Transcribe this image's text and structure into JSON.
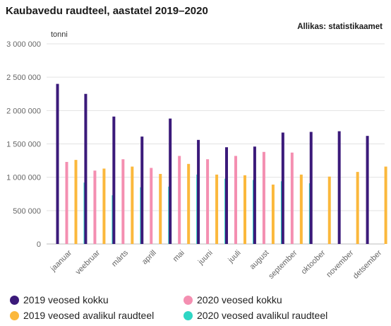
{
  "title": "Kaubavedu raudteel, aastatel 2019–2020",
  "source": "Allikas: statistikaamet",
  "colors": {
    "2019_total": "#3b1a7a",
    "2020_total": "#f48fb1",
    "2019_public": "#fbb83c",
    "2020_public": "#2ed6c4",
    "grid": "#e3e3e3",
    "axis_text": "#666666"
  },
  "chart_data": {
    "type": "bar",
    "title": "Kaubavedu raudteel, aastatel 2019–2020",
    "xlabel": "",
    "ylabel": "tonni",
    "ylim": [
      0,
      3000000
    ],
    "yticks": [
      0,
      500000,
      1000000,
      1500000,
      2000000,
      2500000,
      3000000
    ],
    "ytick_labels": [
      "0",
      "500 000",
      "1 000 000",
      "1 500 000",
      "2 000 000",
      "2 500 000",
      "3 000 000"
    ],
    "grid": true,
    "legend_position": "bottom",
    "categories": [
      "jaanuar",
      "veebruar",
      "märts",
      "aprill",
      "mai",
      "juuni",
      "juuli",
      "august",
      "september",
      "oktoober",
      "november",
      "detsember"
    ],
    "series": [
      {
        "name": "2019 veosed kokku",
        "color": "#3b1a7a",
        "values": [
          2400000,
          2250000,
          1910000,
          1610000,
          1880000,
          1560000,
          1450000,
          1460000,
          1670000,
          1680000,
          1690000,
          1620000
        ]
      },
      {
        "name": "2020 veosed kokku",
        "color": "#f48fb1",
        "values": [
          1230000,
          1100000,
          1270000,
          1140000,
          1320000,
          1270000,
          1320000,
          1380000,
          1370000,
          null,
          null,
          null
        ]
      },
      {
        "name": "2019 veosed avalikul raudteel",
        "color": "#fbb83c",
        "values": [
          1260000,
          1130000,
          1160000,
          1050000,
          1200000,
          1040000,
          1030000,
          890000,
          1040000,
          1010000,
          1080000,
          1160000
        ]
      },
      {
        "name": "2020 veosed avalikul raudteel",
        "color": "#2ed6c4",
        "values": [
          920000,
          730000,
          850000,
          860000,
          1040000,
          980000,
          960000,
          940000,
          910000,
          null,
          null,
          null
        ]
      }
    ]
  }
}
